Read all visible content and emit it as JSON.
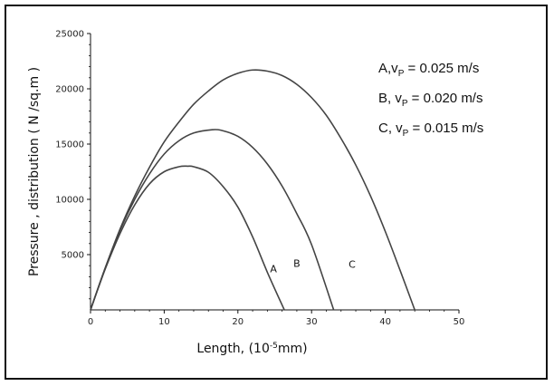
{
  "chart_data": {
    "type": "line",
    "xlabel": {
      "prefix": "Length,  (10",
      "superscript": "-5",
      "suffix": "mm)"
    },
    "ylabel": "Pressure , distribution  ( N /sq.m )",
    "xlim": [
      0,
      50
    ],
    "ylim": [
      0,
      25000
    ],
    "xticks": [
      0,
      10,
      20,
      30,
      40,
      50
    ],
    "yticks": [
      5000,
      10000,
      15000,
      20000,
      25000
    ],
    "grid": false,
    "legend_position": "top-right",
    "legend": [
      {
        "lead": "A,v",
        "sub": "P",
        "tail": " = 0.025  m/s"
      },
      {
        "lead": "B, v",
        "sub": "P",
        "tail": " = 0.020  m/s"
      },
      {
        "lead": "C, v",
        "sub": "P",
        "tail": " = 0.015  m/s"
      }
    ],
    "series": [
      {
        "name": "A",
        "label_at": [
          36,
          3400
        ],
        "x": [
          0,
          2,
          4,
          6,
          8,
          10,
          12,
          13.2,
          14,
          16,
          18,
          20,
          22,
          24,
          26.3
        ],
        "y": [
          0,
          3700,
          6900,
          9500,
          11400,
          12500,
          12950,
          13000,
          12950,
          12450,
          11150,
          9300,
          6600,
          3400,
          0
        ]
      },
      {
        "name": "B",
        "label_at": [
          28,
          3900
        ],
        "x": [
          0,
          2,
          4,
          6,
          8,
          10,
          12,
          14,
          16.5,
          18,
          20,
          22,
          24,
          26,
          28,
          30,
          33
        ],
        "y": [
          0,
          3800,
          7200,
          10000,
          12300,
          14100,
          15300,
          16000,
          16300,
          16200,
          15700,
          14700,
          13200,
          11200,
          8700,
          5900,
          0
        ]
      },
      {
        "name": "C",
        "label_at": [
          35.5,
          3800
        ],
        "x": [
          0,
          2,
          4,
          6,
          8,
          10,
          12,
          14,
          16,
          18,
          20,
          22,
          24,
          26,
          28,
          30,
          32,
          34,
          36,
          38,
          40,
          42,
          44
        ],
        "y": [
          0,
          3800,
          7300,
          10300,
          12900,
          15200,
          17000,
          18600,
          19800,
          20800,
          21400,
          21700,
          21600,
          21200,
          20400,
          19200,
          17600,
          15500,
          13100,
          10300,
          7100,
          3600,
          0
        ]
      }
    ]
  }
}
